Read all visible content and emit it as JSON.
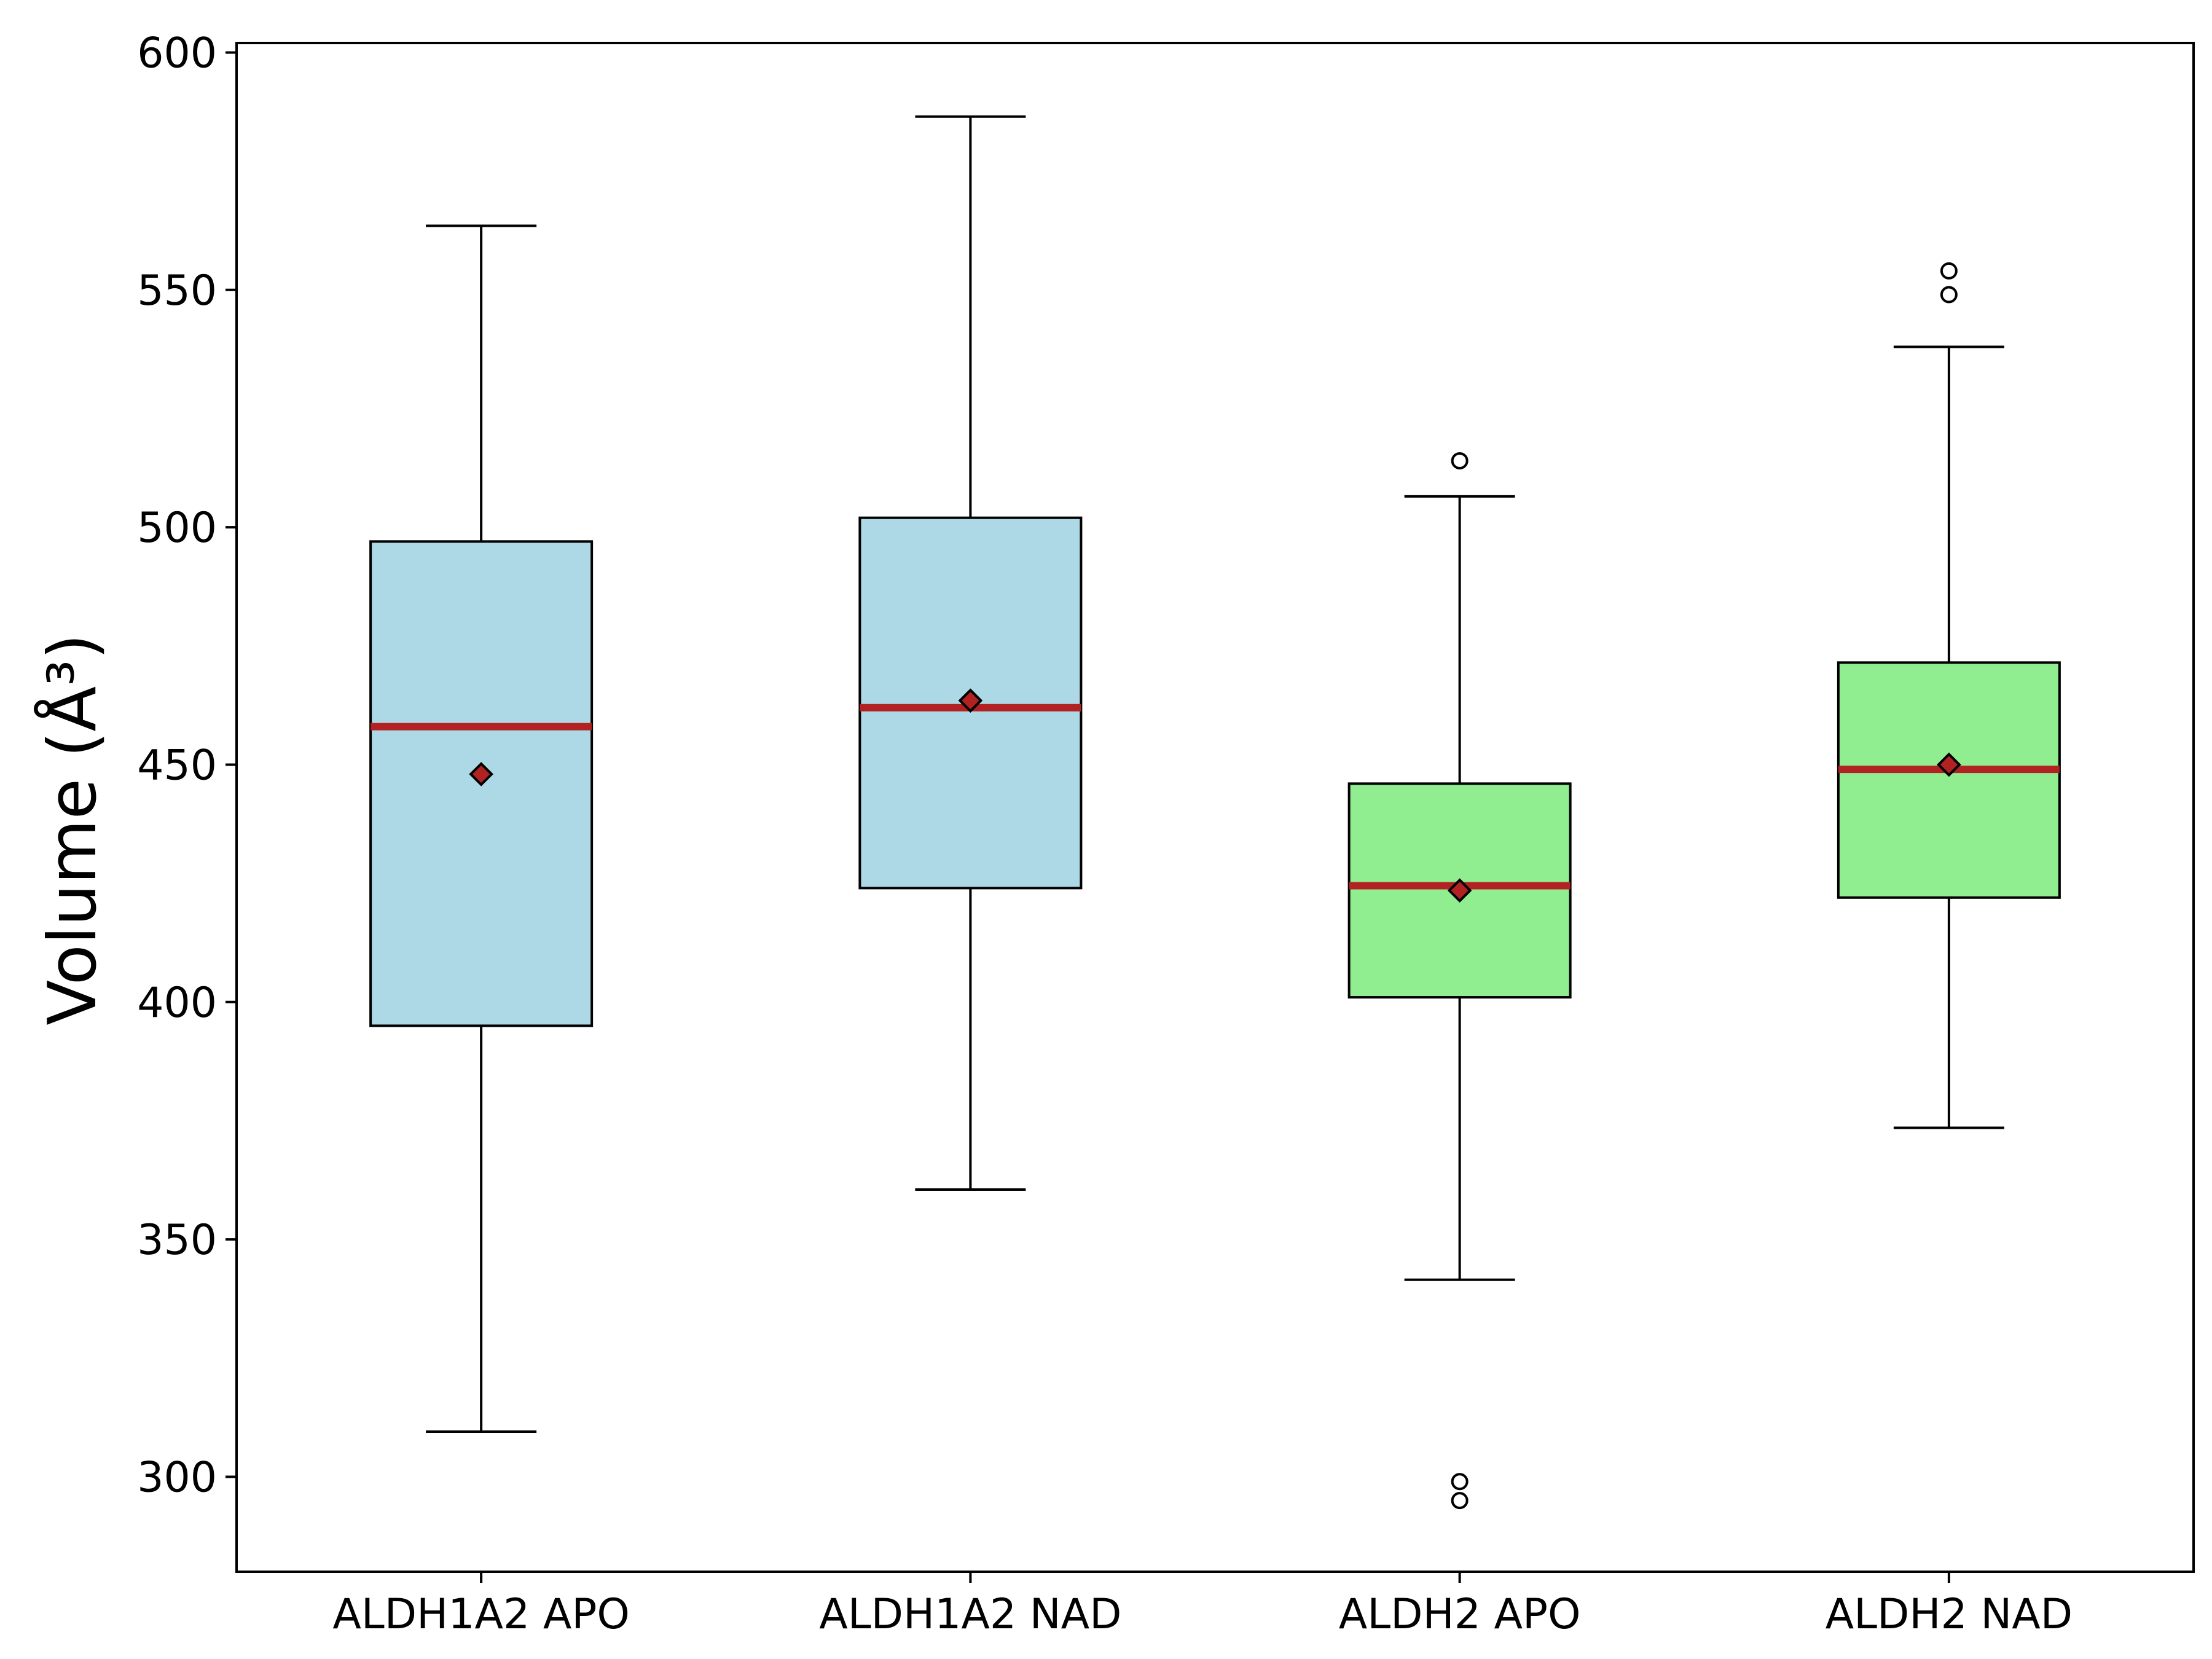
{
  "chart_data": {
    "type": "box",
    "title": "",
    "xlabel": "",
    "ylabel": "Volume (Å³)",
    "ylim": [
      280,
      602
    ],
    "yticks": [
      300,
      350,
      400,
      450,
      500,
      550,
      600
    ],
    "grid": false,
    "legend": "none",
    "categories": [
      "ALDH1A2 APO",
      "ALDH1A2 NAD",
      "ALDH2 APO",
      "ALDH2 NAD"
    ],
    "boxes": [
      {
        "category": "ALDH1A2 APO",
        "whisker_low": 309.5,
        "q1": 395.0,
        "median": 458.0,
        "q3": 497.0,
        "whisker_high": 563.5,
        "mean": 448.0,
        "outliers": [],
        "color": "#add8e6"
      },
      {
        "category": "ALDH1A2 NAD",
        "whisker_low": 360.5,
        "q1": 424.0,
        "median": 462.0,
        "q3": 502.0,
        "whisker_high": 586.5,
        "mean": 463.5,
        "outliers": [],
        "color": "#add8e6"
      },
      {
        "category": "ALDH2 APO",
        "whisker_low": 341.5,
        "q1": 401.0,
        "median": 424.5,
        "q3": 446.0,
        "whisker_high": 506.5,
        "mean": 423.5,
        "outliers": [
          299.0,
          295.0,
          514.0
        ],
        "color": "#90ee90"
      },
      {
        "category": "ALDH2 NAD",
        "whisker_low": 373.5,
        "q1": 422.0,
        "median": 449.0,
        "q3": 471.5,
        "whisker_high": 538.0,
        "mean": 450.0,
        "outliers": [
          549.0,
          554.0
        ],
        "color": "#90ee90"
      }
    ],
    "median_color": "#b22222",
    "mean_marker_color": "#b22222",
    "mean_marker": "diamond"
  }
}
